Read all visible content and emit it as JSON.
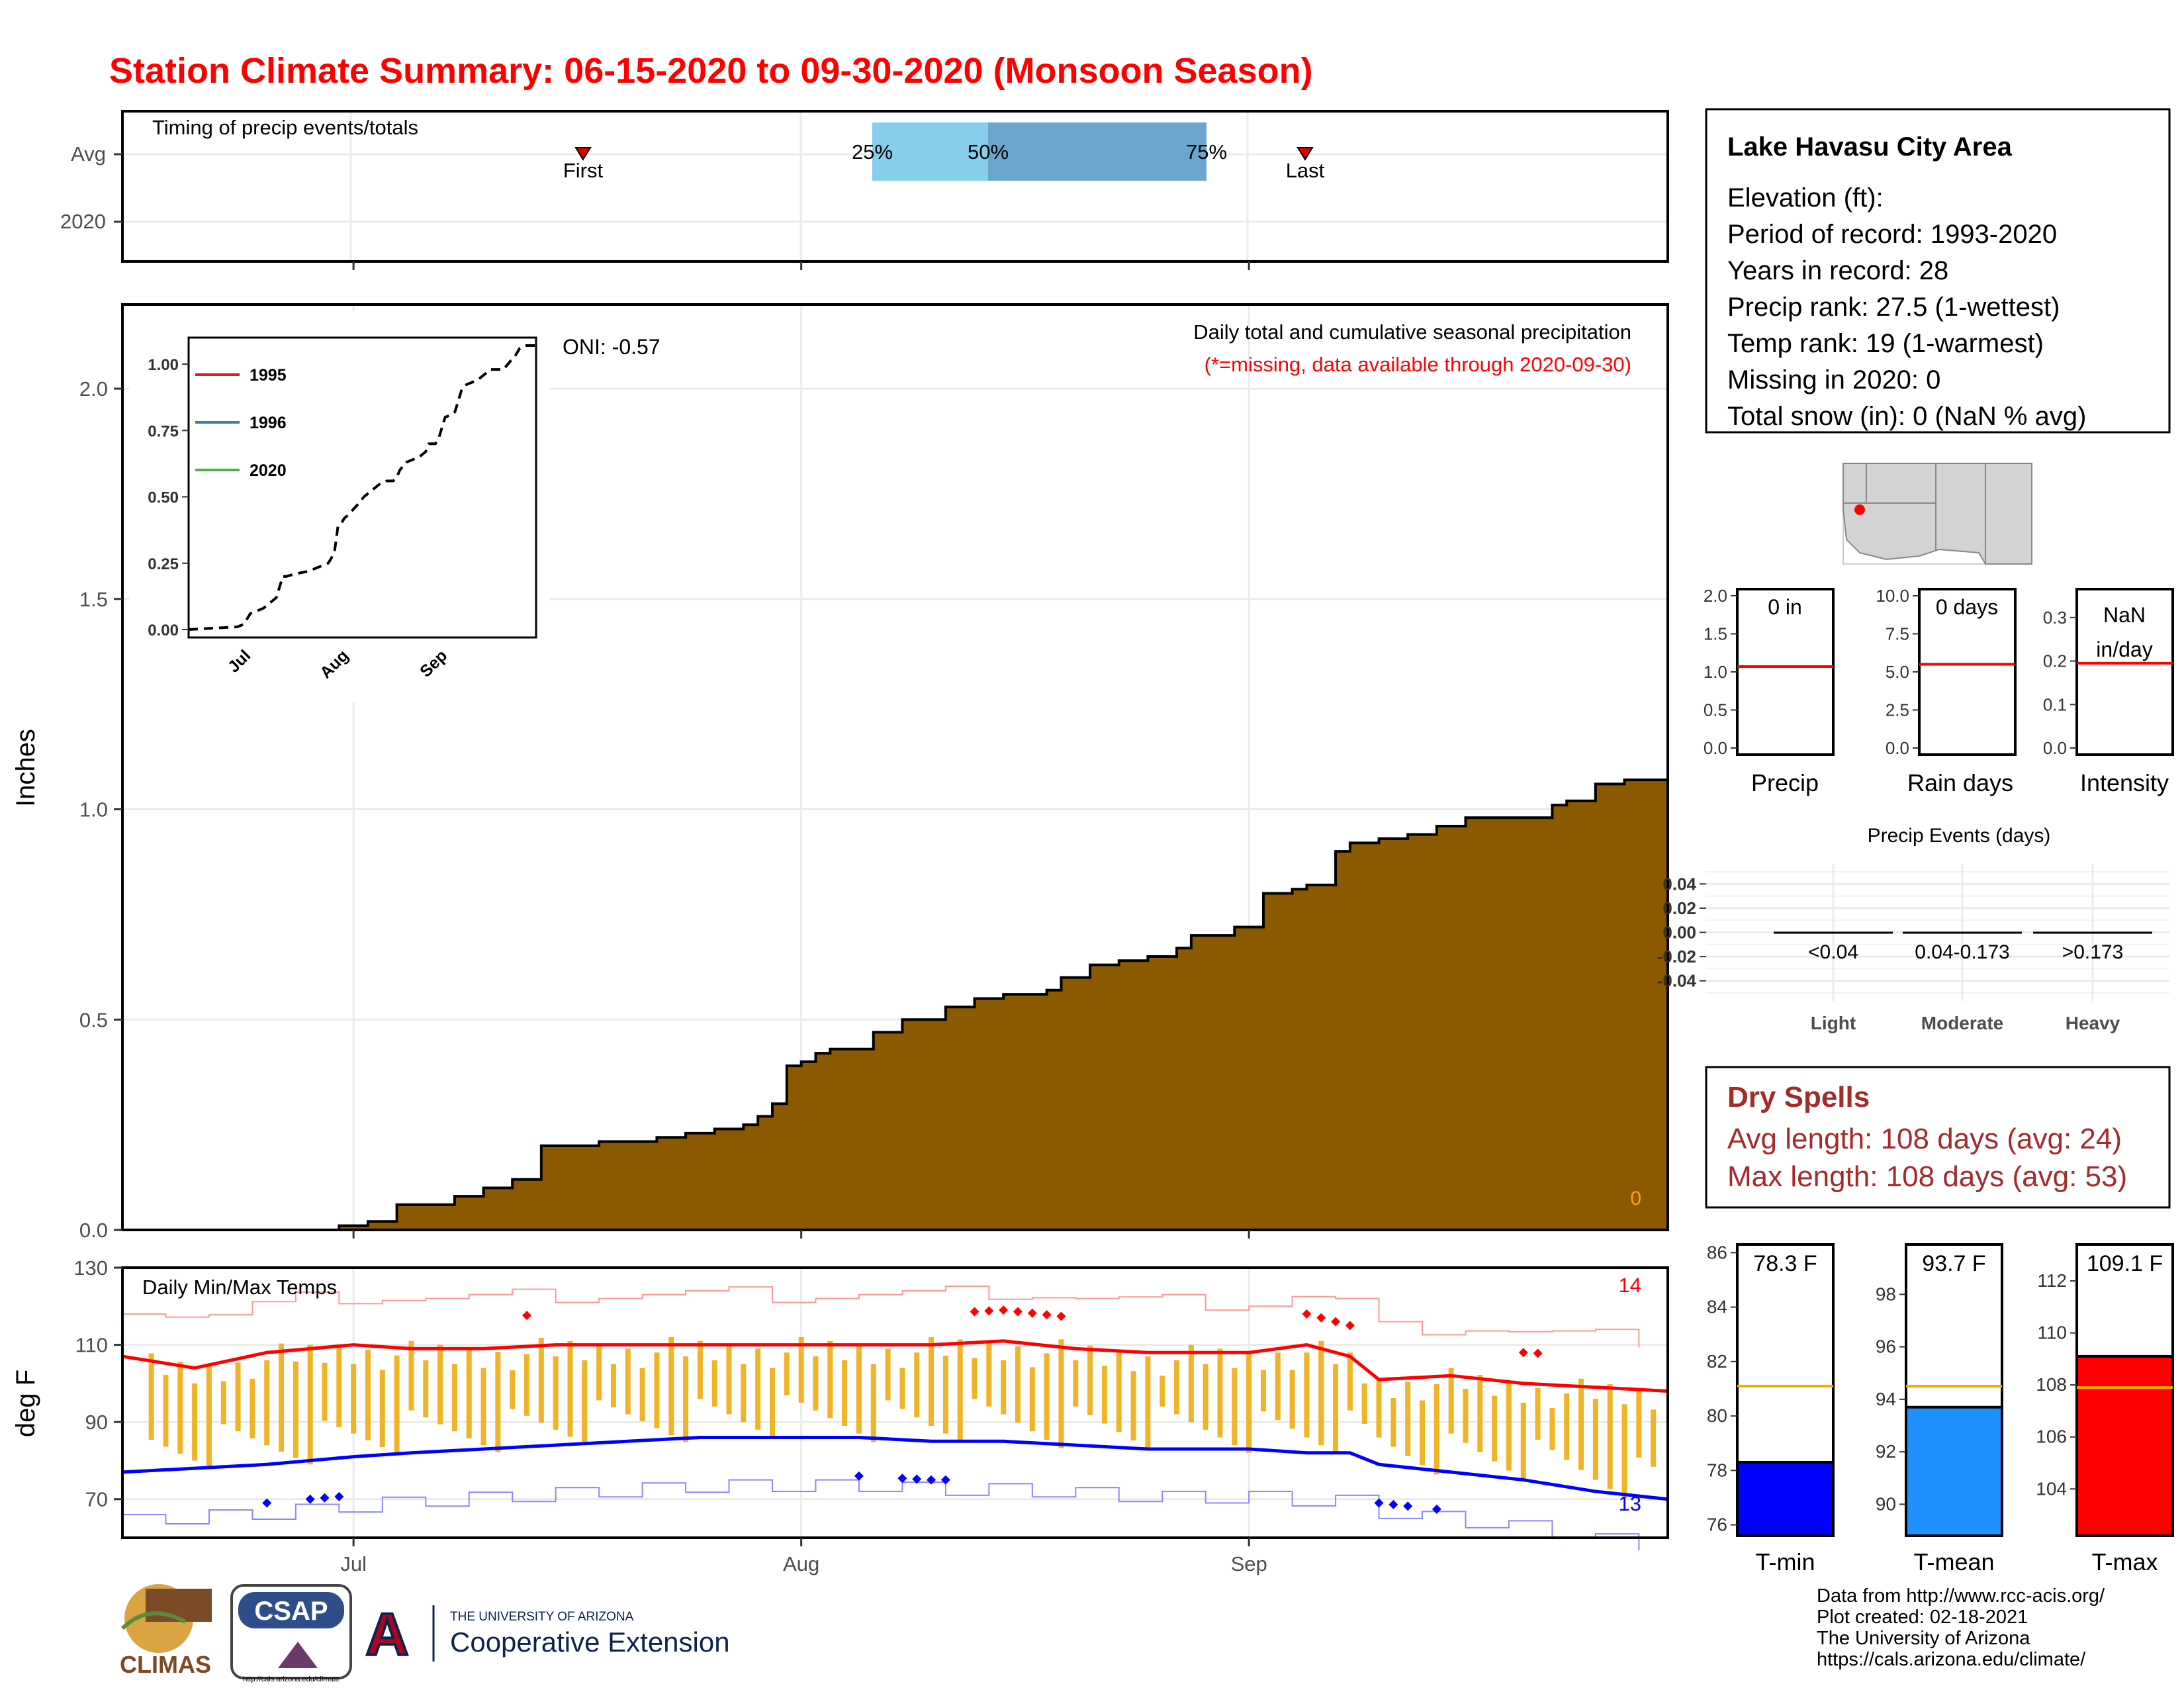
{
  "title": "Station Climate Summary: 06-15-2020 to 09-30-2020 (Monsoon Season)",
  "colors": {
    "title": "#ff0000",
    "precip_fill": "#8b5a00",
    "q25_50": "#87ceeb",
    "q50_75": "#6ca6cd",
    "tmax_line": "#ff0000",
    "tmin_line": "#0000ff",
    "temp_bar": "#f0b429",
    "dry_spell_text": "#a52a2a",
    "tmin_bar": "#0000ff",
    "tmean_bar": "#1e90ff",
    "tmax_bar": "#ff0000",
    "avg_line_orange": "#ffa500",
    "inset_1995": "#e41a1c",
    "inset_1996": "#377eb8",
    "inset_2020": "#4daf4a"
  },
  "timing_panel": {
    "label": "Timing of precip events/totals",
    "row_labels": [
      "Avg",
      "2020"
    ],
    "first_label": "First",
    "last_label": "Last",
    "q25_label": "25%",
    "q50_label": "50%",
    "q75_label": "75%"
  },
  "info_box": {
    "title": "Lake Havasu City Area",
    "lines": [
      "Elevation (ft):",
      "Period of record: 1993-2020",
      "Years in record: 28",
      "Precip rank: 27.5 (1-wettest)",
      "Temp rank: 19 (1-warmest)",
      "Missing in 2020: 0",
      "Total snow (in): 0 (NaN % avg)"
    ]
  },
  "precip_panel": {
    "ylabel": "Inches",
    "header": "Daily total and cumulative seasonal precipitation",
    "subheader": "(*=missing, data available through 2020-09-30)",
    "oni": "ONI: -0.57",
    "zero_label": "0",
    "x_ticks": [
      "Jul",
      "Aug",
      "Sep"
    ],
    "y_ticks": [
      "0.0",
      "0.5",
      "1.0",
      "1.5",
      "2.0"
    ]
  },
  "inset": {
    "legend": [
      "1995",
      "1996",
      "2020"
    ],
    "y_ticks": [
      "0.00",
      "0.25",
      "0.50",
      "0.75",
      "1.00"
    ],
    "x_ticks": [
      "Jul",
      "Aug",
      "Sep"
    ]
  },
  "temp_panel": {
    "ylabel": "deg F",
    "label": "Daily Min/Max Temps",
    "max_count": "14",
    "min_count": "13",
    "y_ticks": [
      "70",
      "90",
      "110",
      "130"
    ],
    "x_ticks": [
      "Jul",
      "Aug",
      "Sep"
    ]
  },
  "mini_panels": [
    {
      "label": "Precip",
      "value": "0 in",
      "ticks": [
        "0.0",
        "0.5",
        "1.0",
        "1.5",
        "2.0"
      ]
    },
    {
      "label": "Rain days",
      "value": "0 days",
      "ticks": [
        "0.0",
        "2.5",
        "5.0",
        "7.5",
        "10.0"
      ]
    },
    {
      "label": "Intensity",
      "value": "NaN in/day",
      "value_line1": "NaN",
      "value_line2": "in/day",
      "ticks": [
        "0.0",
        "0.1",
        "0.2",
        "0.3"
      ]
    }
  ],
  "events_panel": {
    "title": "Precip Events (days)",
    "y_ticks": [
      "0.04",
      "0.02",
      "0.00",
      "-0.02",
      "-0.04"
    ],
    "categories": [
      "Light",
      "Moderate",
      "Heavy"
    ],
    "ranges": [
      "<0.04",
      "0.04-0.173",
      ">0.173"
    ]
  },
  "dry_spells": {
    "title": "Dry Spells",
    "avg": "Avg length: 108 days (avg: 24)",
    "max": "Max length: 108 days (avg: 53)"
  },
  "temp_bars": [
    {
      "label": "T-min",
      "value": "78.3 F",
      "ticks": [
        "76",
        "78",
        "80",
        "82",
        "84",
        "86"
      ]
    },
    {
      "label": "T-mean",
      "value": "93.7 F",
      "ticks": [
        "90",
        "92",
        "94",
        "96",
        "98"
      ]
    },
    {
      "label": "T-max",
      "value": "109.1 F",
      "ticks": [
        "104",
        "106",
        "108",
        "110",
        "112"
      ]
    }
  ],
  "credits": [
    "Data from http://www.rcc-acis.org/",
    "Plot created: 02-18-2021",
    "The University of Arizona",
    "https://cals.arizona.edu/climate/"
  ],
  "logos": {
    "climas": "CLIMAS",
    "csap": "CSAP",
    "csap_url": "http://cals.arizona.edu/climate",
    "ua_line1": "THE UNIVERSITY OF ARIZONA",
    "ua_line2": "Cooperative Extension"
  },
  "chart_data": [
    {
      "type": "area",
      "title": "Daily total and cumulative seasonal precipitation",
      "ylabel": "Inches",
      "ylim": [
        0,
        2.2
      ],
      "x_start": "2020-06-15",
      "x_end": "2020-09-30",
      "x": [
        "2020-06-15",
        "2020-06-30",
        "2020-07-02",
        "2020-07-04",
        "2020-07-08",
        "2020-07-10",
        "2020-07-12",
        "2020-07-14",
        "2020-07-15",
        "2020-07-18",
        "2020-07-22",
        "2020-07-24",
        "2020-07-26",
        "2020-07-28",
        "2020-07-29",
        "2020-07-30",
        "2020-07-31",
        "2020-08-01",
        "2020-08-02",
        "2020-08-03",
        "2020-08-06",
        "2020-08-08",
        "2020-08-11",
        "2020-08-13",
        "2020-08-15",
        "2020-08-17",
        "2020-08-18",
        "2020-08-19",
        "2020-08-21",
        "2020-08-23",
        "2020-08-25",
        "2020-08-27",
        "2020-08-28",
        "2020-08-30",
        "2020-08-31",
        "2020-09-02",
        "2020-09-04",
        "2020-09-05",
        "2020-09-07",
        "2020-09-08",
        "2020-09-10",
        "2020-09-12",
        "2020-09-14",
        "2020-09-16",
        "2020-09-20",
        "2020-09-22",
        "2020-09-23",
        "2020-09-25",
        "2020-09-27",
        "2020-09-30"
      ],
      "values": [
        0.0,
        0.01,
        0.02,
        0.06,
        0.08,
        0.1,
        0.12,
        0.2,
        0.2,
        0.21,
        0.22,
        0.23,
        0.24,
        0.25,
        0.27,
        0.3,
        0.39,
        0.4,
        0.42,
        0.43,
        0.47,
        0.5,
        0.53,
        0.55,
        0.56,
        0.56,
        0.57,
        0.6,
        0.63,
        0.64,
        0.65,
        0.67,
        0.7,
        0.7,
        0.72,
        0.8,
        0.81,
        0.82,
        0.9,
        0.92,
        0.93,
        0.94,
        0.96,
        0.98,
        0.98,
        1.01,
        1.02,
        1.06,
        1.07,
        1.07
      ]
    },
    {
      "type": "line",
      "title": "Daily Min/Max Temps",
      "ylabel": "deg F",
      "ylim": [
        60,
        130
      ],
      "x_start": "2020-06-15",
      "x_end": "2020-09-30",
      "series": [
        {
          "name": "avg max",
          "x": [
            "06-15",
            "06-20",
            "06-25",
            "07-01",
            "07-05",
            "07-10",
            "07-15",
            "07-20",
            "07-25",
            "08-01",
            "08-05",
            "08-10",
            "08-15",
            "08-20",
            "08-25",
            "09-01",
            "09-05",
            "09-08",
            "09-10",
            "09-15",
            "09-20",
            "09-25",
            "09-30"
          ],
          "values": [
            107,
            104,
            108,
            110,
            109,
            109,
            110,
            110,
            110,
            110,
            110,
            110,
            111,
            109,
            108,
            108,
            110,
            107,
            101,
            102,
            100,
            99,
            98
          ]
        },
        {
          "name": "avg min",
          "x": [
            "06-15",
            "06-20",
            "06-25",
            "07-01",
            "07-05",
            "07-10",
            "07-15",
            "07-20",
            "07-25",
            "08-01",
            "08-05",
            "08-10",
            "08-15",
            "08-20",
            "08-25",
            "09-01",
            "09-05",
            "09-08",
            "09-10",
            "09-15",
            "09-20",
            "09-25",
            "09-30"
          ],
          "values": [
            77,
            78,
            79,
            81,
            82,
            83,
            84,
            85,
            86,
            86,
            86,
            85,
            85,
            84,
            83,
            83,
            82,
            82,
            79,
            77,
            75,
            72,
            70
          ]
        }
      ]
    },
    {
      "type": "bar",
      "title": "Precip",
      "categories": [
        "2020"
      ],
      "values": [
        0
      ],
      "avg": 1.07,
      "ylim": [
        0,
        2.0
      ]
    },
    {
      "type": "bar",
      "title": "Rain days",
      "categories": [
        "2020"
      ],
      "values": [
        0
      ],
      "avg": 5.5,
      "ylim": [
        0,
        10.0
      ]
    },
    {
      "type": "bar",
      "title": "Intensity",
      "categories": [
        "2020"
      ],
      "values": [
        0
      ],
      "avg": 0.195,
      "ylim": [
        0,
        0.35
      ]
    },
    {
      "type": "bar",
      "title": "Precip Events (days)",
      "categories": [
        "Light",
        "Moderate",
        "Heavy"
      ],
      "values": [
        0,
        0,
        0
      ],
      "ylim": [
        -0.05,
        0.05
      ]
    },
    {
      "type": "bar",
      "title": "T-min",
      "categories": [
        "2020"
      ],
      "values": [
        78.3
      ],
      "avg": 81.1,
      "ylim": [
        75.6,
        86.3
      ]
    },
    {
      "type": "bar",
      "title": "T-mean",
      "categories": [
        "2020"
      ],
      "values": [
        93.7
      ],
      "avg": 94.5,
      "ylim": [
        88.8,
        99.9
      ]
    },
    {
      "type": "bar",
      "title": "T-max",
      "categories": [
        "2020"
      ],
      "values": [
        109.1
      ],
      "avg": 107.9,
      "ylim": [
        102.2,
        113.4
      ]
    }
  ]
}
